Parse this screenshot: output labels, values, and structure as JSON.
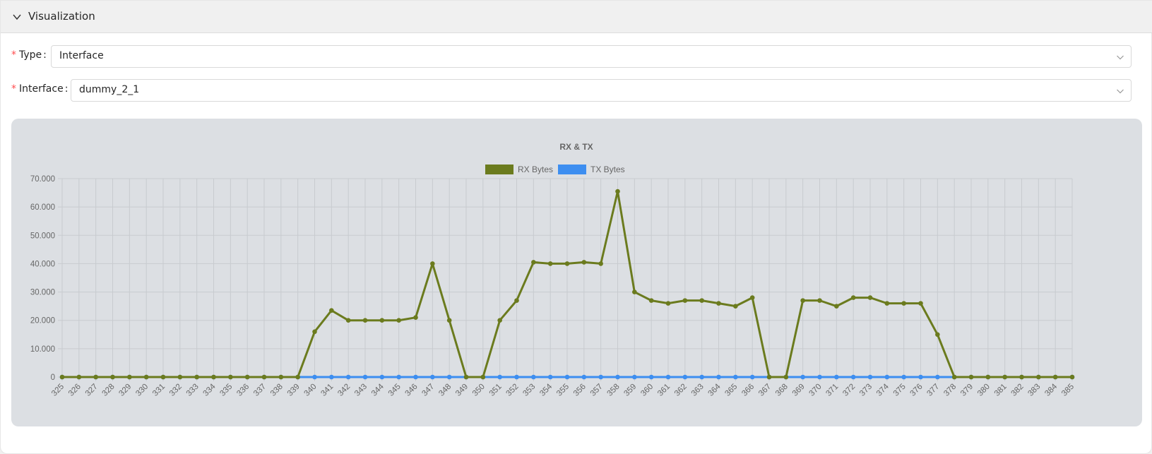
{
  "panel": {
    "title": "Visualization",
    "collapse_icon": "chevron-down-icon"
  },
  "form": {
    "type": {
      "label": "Type",
      "colon": ":",
      "required_mark": "*",
      "value": "Interface"
    },
    "interface": {
      "label": "Interface",
      "colon": ":",
      "required_mark": "*",
      "value": "dummy_2_1"
    }
  },
  "colors": {
    "rx": "#6b7b1e",
    "tx": "#3d8ef0",
    "grid": "#c8cbcf",
    "required": "#ff4d4f"
  },
  "chart_data": {
    "type": "line",
    "title": "RX & TX",
    "xlabel": "",
    "ylabel": "",
    "ylim": [
      0,
      70000
    ],
    "y_ticks": [
      0,
      10000,
      20000,
      30000,
      40000,
      50000,
      60000,
      70000
    ],
    "y_tick_labels": [
      "0",
      "10.000",
      "20.000",
      "30.000",
      "40.000",
      "50.000",
      "60.000",
      "70.000"
    ],
    "legend_position": "top",
    "grid": true,
    "categories": [
      "325",
      "326",
      "327",
      "328",
      "329",
      "330",
      "331",
      "332",
      "333",
      "334",
      "335",
      "336",
      "337",
      "338",
      "339",
      "340",
      "341",
      "342",
      "343",
      "344",
      "345",
      "346",
      "347",
      "348",
      "349",
      "350",
      "351",
      "352",
      "353",
      "354",
      "355",
      "356",
      "357",
      "358",
      "359",
      "360",
      "361",
      "362",
      "363",
      "364",
      "365",
      "366",
      "367",
      "368",
      "369",
      "370",
      "371",
      "372",
      "373",
      "374",
      "375",
      "376",
      "377",
      "378",
      "379",
      "380",
      "381",
      "382",
      "383",
      "384",
      "385"
    ],
    "series": [
      {
        "name": "RX Bytes",
        "color": "#6b7b1e",
        "values": [
          0,
          0,
          0,
          0,
          0,
          0,
          0,
          0,
          0,
          0,
          0,
          0,
          0,
          0,
          0,
          16000,
          23500,
          20000,
          20000,
          20000,
          20000,
          21000,
          40000,
          20000,
          0,
          0,
          20000,
          27000,
          40500,
          40000,
          40000,
          40500,
          40000,
          65500,
          30000,
          27000,
          26000,
          27000,
          27000,
          26000,
          25000,
          28000,
          0,
          0,
          27000,
          27000,
          25000,
          28000,
          28000,
          26000,
          26000,
          26000,
          15000,
          0,
          0,
          0,
          0,
          0,
          0,
          0,
          0
        ]
      },
      {
        "name": "TX Bytes",
        "color": "#3d8ef0",
        "values": [
          0,
          0,
          0,
          0,
          0,
          0,
          0,
          0,
          0,
          0,
          0,
          0,
          0,
          0,
          0,
          0,
          0,
          0,
          0,
          0,
          0,
          0,
          0,
          0,
          0,
          0,
          0,
          0,
          0,
          0,
          0,
          0,
          0,
          0,
          0,
          0,
          0,
          0,
          0,
          0,
          0,
          0,
          0,
          0,
          0,
          0,
          0,
          0,
          0,
          0,
          0,
          0,
          0,
          0,
          0,
          0,
          0,
          0,
          0,
          0,
          0
        ]
      }
    ]
  }
}
